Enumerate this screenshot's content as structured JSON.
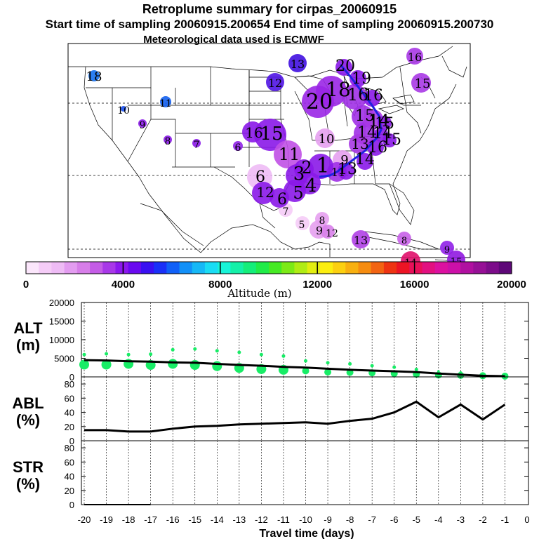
{
  "header": {
    "title": "Retroplume summary for cirpas_20060915",
    "sampling": "Start time of sampling 20060915.200654     End time of sampling 20060915.200730",
    "met": "Meteorological data used is ECMWF"
  },
  "colorbar": {
    "label": "Altitude (m)",
    "ticks": [
      "0",
      "4000",
      "8000",
      "12000",
      "16000",
      "20000"
    ],
    "colors": [
      "#fbe6fb",
      "#f5ccf7",
      "#eebbf5",
      "#e39cf0",
      "#d77ee9",
      "#c45ce6",
      "#a838e8",
      "#8c18ee",
      "#6a0af0",
      "#3a10f2",
      "#1a30f8",
      "#1060f8",
      "#1290f8",
      "#16b8f6",
      "#1adcf4",
      "#18f4d8",
      "#14f0a8",
      "#14ee7a",
      "#20ec48",
      "#46ea24",
      "#7cea16",
      "#b0ec14",
      "#e2ee10",
      "#fcee10",
      "#fcd010",
      "#f8b010",
      "#f68c10",
      "#f26412",
      "#ee3412",
      "#ec1424",
      "#e8105a",
      "#e21080",
      "#dc10a0",
      "#cc10a8",
      "#b010a0",
      "#961096",
      "#7c0c8a",
      "#5e0878"
    ]
  },
  "map": {
    "plume_labels": [
      {
        "t": "18",
        "c": "#1470ee"
      },
      {
        "t": "10",
        "c": "#1a50f0"
      },
      {
        "t": "11",
        "c": "#1460f0"
      },
      {
        "t": "9",
        "c": "#8a18e8"
      },
      {
        "t": "8",
        "c": "#8a18e8"
      },
      {
        "t": "7",
        "c": "#8a18e8"
      },
      {
        "t": "6",
        "c": "#9024e8"
      },
      {
        "t": "13",
        "c": "#4010e0"
      },
      {
        "t": "12",
        "c": "#5014e4"
      },
      {
        "t": "16",
        "c": "#8a18e8"
      },
      {
        "t": "15",
        "c": "#8a18e8"
      },
      {
        "t": "20",
        "c": "#9a26e6"
      },
      {
        "t": "18",
        "c": "#9a26e6"
      },
      {
        "t": "16",
        "c": "#a030e6"
      },
      {
        "t": "15",
        "c": "#a030e6"
      },
      {
        "t": "14",
        "c": "#a030e6"
      },
      {
        "t": "13",
        "c": "#a838e4"
      },
      {
        "t": "11",
        "c": "#c050e6"
      },
      {
        "t": "10",
        "c": "#e6a0f0"
      },
      {
        "t": "9",
        "c": "#e6a0f0"
      },
      {
        "t": "11",
        "c": "#a030e6"
      },
      {
        "t": "6",
        "c": "#eebbf5"
      },
      {
        "t": "7",
        "c": "#f5ccf7"
      },
      {
        "t": "5",
        "c": "#f5ccf7"
      },
      {
        "t": "8",
        "c": "#e6a0f0"
      },
      {
        "t": "9",
        "c": "#e6a0f0"
      },
      {
        "t": "12",
        "c": "#d880ea"
      },
      {
        "t": "13",
        "c": "#b040e6"
      },
      {
        "t": "8",
        "c": "#c860e8"
      },
      {
        "t": "9",
        "c": "#9020e8"
      },
      {
        "t": "14",
        "c": "#e0106a"
      },
      {
        "t": "15",
        "c": "#9018e0"
      },
      {
        "t": "16",
        "c": "#a838e6"
      },
      {
        "t": "15",
        "c": "#a838e6"
      },
      {
        "t": "14",
        "c": "#a838e6"
      },
      {
        "t": "20",
        "c": "#8a18e8"
      },
      {
        "t": "19",
        "c": "#8a18e8"
      },
      {
        "t": "16",
        "c": "#8a18e8"
      },
      {
        "t": "15",
        "c": "#8a18e8"
      },
      {
        "t": "14",
        "c": "#8a18e8"
      },
      {
        "t": "15",
        "c": "#8a18e8"
      },
      {
        "t": "16",
        "c": "#8a18e8"
      },
      {
        "t": "14",
        "c": "#8a18e8"
      },
      {
        "t": "13",
        "c": "#8a18e8"
      },
      {
        "t": "12",
        "c": "#8a18e8"
      },
      {
        "t": "6",
        "c": "#8a18e8"
      },
      {
        "t": "5",
        "c": "#8a18e8"
      },
      {
        "t": "4",
        "c": "#8a18e8"
      },
      {
        "t": "3",
        "c": "#8a18e8"
      },
      {
        "t": "2",
        "c": "#8a18e8"
      },
      {
        "t": "1",
        "c": "#8a18e8"
      }
    ]
  },
  "chart_data": [
    {
      "type": "scatter",
      "name": "ALT",
      "ylabel": "ALT (m)",
      "ylim": [
        0,
        20000
      ],
      "yticks": [
        "0",
        "5000",
        "10000",
        "15000",
        "20000"
      ],
      "x": [
        -20,
        -19,
        -18,
        -17,
        -16,
        -15,
        -14,
        -13,
        -12,
        -11,
        -10,
        -9,
        -8,
        -7,
        -6,
        -5,
        -4,
        -3,
        -2,
        -1
      ],
      "mean_line": [
        4500,
        4400,
        4200,
        4100,
        3900,
        3800,
        3500,
        3200,
        3000,
        2700,
        2500,
        2200,
        1900,
        1700,
        1500,
        1300,
        900,
        600,
        300,
        200
      ],
      "upper_points": [
        6000,
        6200,
        6000,
        6100,
        7300,
        7500,
        7000,
        6600,
        6000,
        5600,
        4300,
        3800,
        3500,
        3000,
        2600,
        2000,
        1500,
        1200,
        900,
        700
      ],
      "lower_points": [
        3300,
        3300,
        3500,
        3200,
        3500,
        3200,
        2900,
        2400,
        2100,
        1900,
        1600,
        1300,
        1200,
        1100,
        900,
        700,
        500,
        400,
        300,
        200
      ],
      "marker_color": "#18ec66",
      "line_color": "#000000"
    },
    {
      "type": "line",
      "name": "ABL",
      "ylabel": "ABL (%)",
      "ylim": [
        0,
        90
      ],
      "yticks": [
        "0",
        "20",
        "40",
        "60",
        "80"
      ],
      "x": [
        -20,
        -19,
        -18,
        -17,
        -16,
        -15,
        -14,
        -13,
        -12,
        -11,
        -10,
        -9,
        -8,
        -7,
        -6,
        -5,
        -4,
        -3,
        -2,
        -1
      ],
      "values": [
        15,
        15,
        13,
        13,
        17,
        20,
        21,
        23,
        24,
        25,
        26,
        24,
        28,
        31,
        40,
        55,
        33,
        51,
        30,
        51
      ]
    },
    {
      "type": "line",
      "name": "STR",
      "ylabel": "STR (%)",
      "ylim": [
        0,
        90
      ],
      "yticks": [
        "0",
        "20",
        "40",
        "60",
        "80"
      ],
      "x": [
        -20,
        -19,
        -18,
        -17
      ],
      "values": [
        0,
        0,
        0,
        0
      ]
    }
  ],
  "xaxis": {
    "label": "Travel time (days)",
    "ticks": [
      "-20",
      "-19",
      "-18",
      "-17",
      "-16",
      "-15",
      "-14",
      "-13",
      "-12",
      "-11",
      "-10",
      "-9",
      "-8",
      "-7",
      "-6",
      "-5",
      "-4",
      "-3",
      "-2",
      "-1",
      "0"
    ]
  },
  "panel_labels": {
    "alt": [
      "ALT",
      "(m)"
    ],
    "abl": [
      "ABL",
      "(%)"
    ],
    "str": [
      "STR",
      "(%)"
    ]
  }
}
